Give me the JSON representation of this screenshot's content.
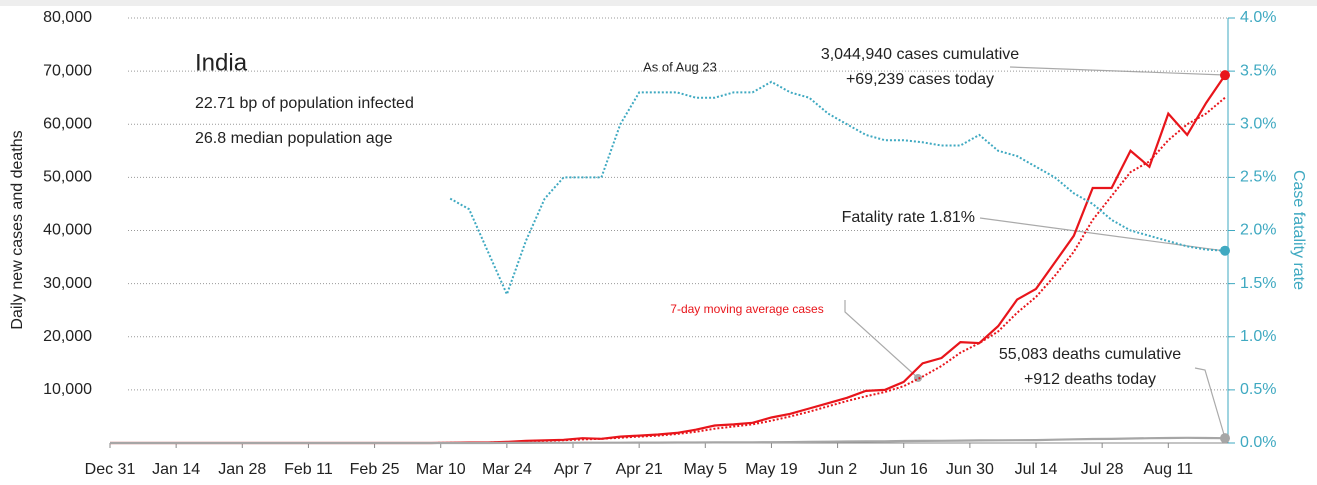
{
  "chart_data": {
    "type": "line",
    "title": "India",
    "annotations": [
      "22.71 bp of population infected",
      "26.8 median population age",
      "As of Aug 23",
      "3,044,940 cases cumulative",
      "+69,239 cases today",
      "Fatality rate 1.81%",
      "7-day moving average cases",
      "55,083 deaths cumulative",
      "+912 deaths today"
    ],
    "ylabel": "Daily new cases and deaths",
    "y2label": "Case fatality rate",
    "x": [
      0,
      4,
      8,
      12,
      16,
      20,
      24,
      28,
      32,
      36,
      40,
      44,
      48,
      52,
      56,
      60,
      64,
      68,
      72,
      76,
      80,
      84,
      88,
      92,
      96,
      100,
      104,
      108,
      112,
      116,
      120,
      124,
      128,
      132,
      136,
      140,
      144,
      148,
      152,
      156,
      160,
      164,
      168,
      172,
      176,
      180,
      184,
      188,
      192,
      196,
      200,
      204,
      208,
      212,
      216,
      220,
      224,
      228,
      232,
      236
    ],
    "xlim": [
      0,
      236
    ],
    "xticks": [
      {
        "value": 0,
        "label": "Dec 31"
      },
      {
        "value": 14,
        "label": "Jan 14"
      },
      {
        "value": 28,
        "label": "Jan 28"
      },
      {
        "value": 42,
        "label": "Feb 11"
      },
      {
        "value": 56,
        "label": "Feb 25"
      },
      {
        "value": 70,
        "label": "Mar 10"
      },
      {
        "value": 84,
        "label": "Mar 24"
      },
      {
        "value": 98,
        "label": "Apr 7"
      },
      {
        "value": 112,
        "label": "Apr 21"
      },
      {
        "value": 126,
        "label": "May 5"
      },
      {
        "value": 140,
        "label": "May 19"
      },
      {
        "value": 154,
        "label": "Jun 2"
      },
      {
        "value": 168,
        "label": "Jun 16"
      },
      {
        "value": 182,
        "label": "Jun 30"
      },
      {
        "value": 196,
        "label": "Jul 14"
      },
      {
        "value": 210,
        "label": "Jul 28"
      },
      {
        "value": 224,
        "label": "Aug 11"
      }
    ],
    "ylim": [
      0,
      80000
    ],
    "yticks": [
      {
        "value": 10000,
        "label": "10,000"
      },
      {
        "value": 20000,
        "label": "20,000"
      },
      {
        "value": 30000,
        "label": "30,000"
      },
      {
        "value": 40000,
        "label": "40,000"
      },
      {
        "value": 50000,
        "label": "50,000"
      },
      {
        "value": 60000,
        "label": "60,000"
      },
      {
        "value": 70000,
        "label": "70,000"
      },
      {
        "value": 80000,
        "label": "80,000"
      }
    ],
    "y2lim": [
      0,
      4
    ],
    "y2ticks": [
      {
        "value": 0,
        "label": "0.0%"
      },
      {
        "value": 0.5,
        "label": "0.5%"
      },
      {
        "value": 1,
        "label": "1.0%"
      },
      {
        "value": 1.5,
        "label": "1.5%"
      },
      {
        "value": 2,
        "label": "2.0%"
      },
      {
        "value": 2.5,
        "label": "2.5%"
      },
      {
        "value": 3,
        "label": "3.0%"
      },
      {
        "value": 3.5,
        "label": "3.5%"
      },
      {
        "value": 4,
        "label": "4.0%"
      }
    ],
    "grid": true,
    "series": [
      {
        "name": "Daily new cases",
        "color": "#e8151b",
        "style": "solid",
        "values": [
          0,
          0,
          0,
          0,
          0,
          0,
          0,
          0,
          0,
          0,
          0,
          0,
          0,
          0,
          0,
          0,
          0,
          0,
          60,
          90,
          100,
          200,
          400,
          500,
          600,
          900,
          800,
          1200,
          1400,
          1600,
          1900,
          2500,
          3300,
          3500,
          3800,
          4800,
          5500,
          6500,
          7500,
          8500,
          9800,
          10000,
          11500,
          15000,
          16000,
          19000,
          18800,
          22000,
          27000,
          29000,
          34000,
          39000,
          48000,
          48000,
          55000,
          52000,
          62000,
          58000,
          64000,
          69239
        ]
      },
      {
        "name": "7-day moving average cases",
        "color": "#e8151b",
        "style": "dotted",
        "values": [
          0,
          0,
          0,
          0,
          0,
          0,
          0,
          0,
          0,
          0,
          0,
          0,
          0,
          0,
          0,
          0,
          0,
          0,
          30,
          60,
          90,
          150,
          280,
          400,
          520,
          680,
          800,
          1000,
          1200,
          1400,
          1700,
          2100,
          2700,
          3100,
          3500,
          4200,
          5000,
          5900,
          6900,
          7900,
          8800,
          9600,
          10700,
          12500,
          14500,
          17000,
          18800,
          21000,
          24500,
          27500,
          31500,
          36000,
          42000,
          46500,
          51000,
          53000,
          57000,
          60000,
          62000,
          65000
        ]
      },
      {
        "name": "Daily deaths",
        "color": "#a6a6a6",
        "style": "solid",
        "values": [
          0,
          0,
          0,
          0,
          0,
          0,
          0,
          0,
          0,
          0,
          0,
          0,
          0,
          0,
          0,
          0,
          0,
          0,
          0,
          0,
          3,
          10,
          20,
          30,
          40,
          50,
          50,
          60,
          70,
          80,
          90,
          100,
          120,
          130,
          130,
          150,
          160,
          200,
          250,
          280,
          300,
          320,
          380,
          400,
          420,
          450,
          480,
          500,
          530,
          550,
          620,
          700,
          750,
          780,
          850,
          900,
          950,
          980,
          950,
          912
        ]
      },
      {
        "name": "Case fatality rate",
        "color": "#3fa9c1",
        "style": "dotted",
        "axis": "y2",
        "values": [
          null,
          null,
          null,
          null,
          null,
          null,
          null,
          null,
          null,
          null,
          null,
          null,
          null,
          null,
          null,
          null,
          null,
          null,
          2.3,
          2.2,
          1.8,
          1.4,
          1.9,
          2.3,
          2.5,
          2.5,
          2.5,
          3.0,
          3.3,
          3.3,
          3.3,
          3.25,
          3.25,
          3.3,
          3.3,
          3.4,
          3.3,
          3.25,
          3.1,
          3.0,
          2.9,
          2.85,
          2.85,
          2.83,
          2.8,
          2.8,
          2.9,
          2.75,
          2.7,
          2.6,
          2.5,
          2.35,
          2.25,
          2.1,
          2.0,
          1.95,
          1.9,
          1.85,
          1.82,
          1.81
        ]
      }
    ]
  }
}
